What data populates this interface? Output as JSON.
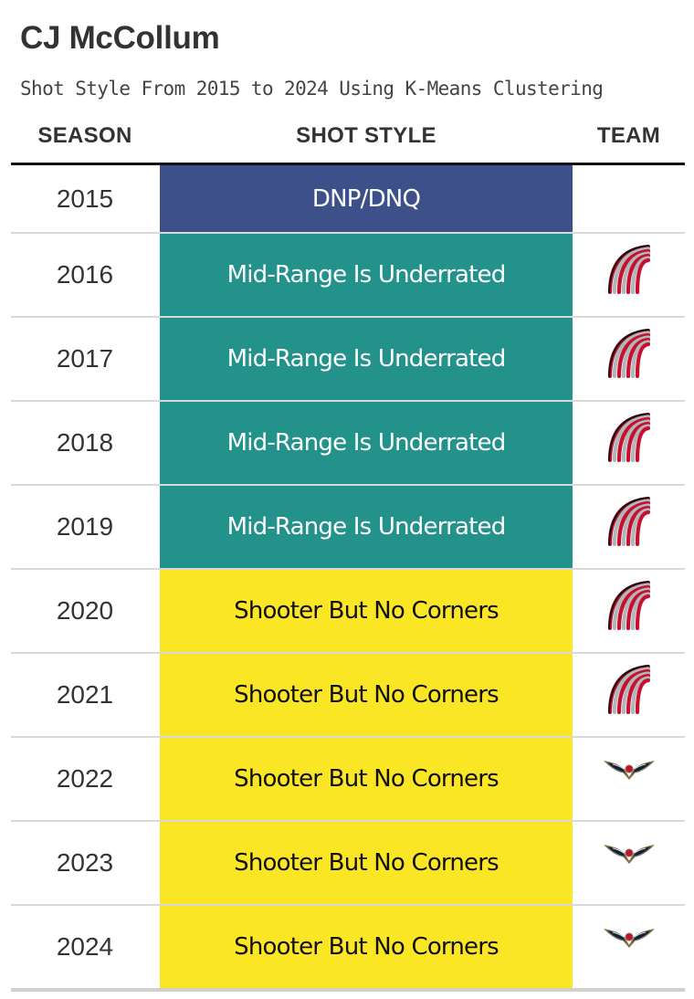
{
  "page": {
    "title": "CJ McCollum",
    "subtitle": "Shot Style From 2015 to 2024 Using K-Means Clustering"
  },
  "chart_data": {
    "type": "table",
    "columns": [
      "SEASON",
      "SHOT STYLE",
      "TEAM"
    ],
    "style_colors": {
      "DNP/DNQ": {
        "bg": "#3d5089",
        "fg": "#ffffff"
      },
      "Mid-Range Is Underrated": {
        "bg": "#23928b",
        "fg": "#ffffff"
      },
      "Shooter But No Corners": {
        "bg": "#fbe625",
        "fg": "#111111"
      }
    },
    "rows": [
      {
        "season": "2015",
        "style": "DNP/DNQ",
        "team_icon": ""
      },
      {
        "season": "2016",
        "style": "Mid-Range Is Underrated",
        "team_icon": "trail-blazers-logo-icon"
      },
      {
        "season": "2017",
        "style": "Mid-Range Is Underrated",
        "team_icon": "trail-blazers-logo-icon"
      },
      {
        "season": "2018",
        "style": "Mid-Range Is Underrated",
        "team_icon": "trail-blazers-logo-icon"
      },
      {
        "season": "2019",
        "style": "Mid-Range Is Underrated",
        "team_icon": "trail-blazers-logo-icon"
      },
      {
        "season": "2020",
        "style": "Shooter But No Corners",
        "team_icon": "trail-blazers-logo-icon"
      },
      {
        "season": "2021",
        "style": "Shooter But No Corners",
        "team_icon": "trail-blazers-logo-icon"
      },
      {
        "season": "2022",
        "style": "Shooter But No Corners",
        "team_icon": "pelicans-logo-icon"
      },
      {
        "season": "2023",
        "style": "Shooter But No Corners",
        "team_icon": "pelicans-logo-icon"
      },
      {
        "season": "2024",
        "style": "Shooter But No Corners",
        "team_icon": "pelicans-logo-icon"
      }
    ]
  }
}
